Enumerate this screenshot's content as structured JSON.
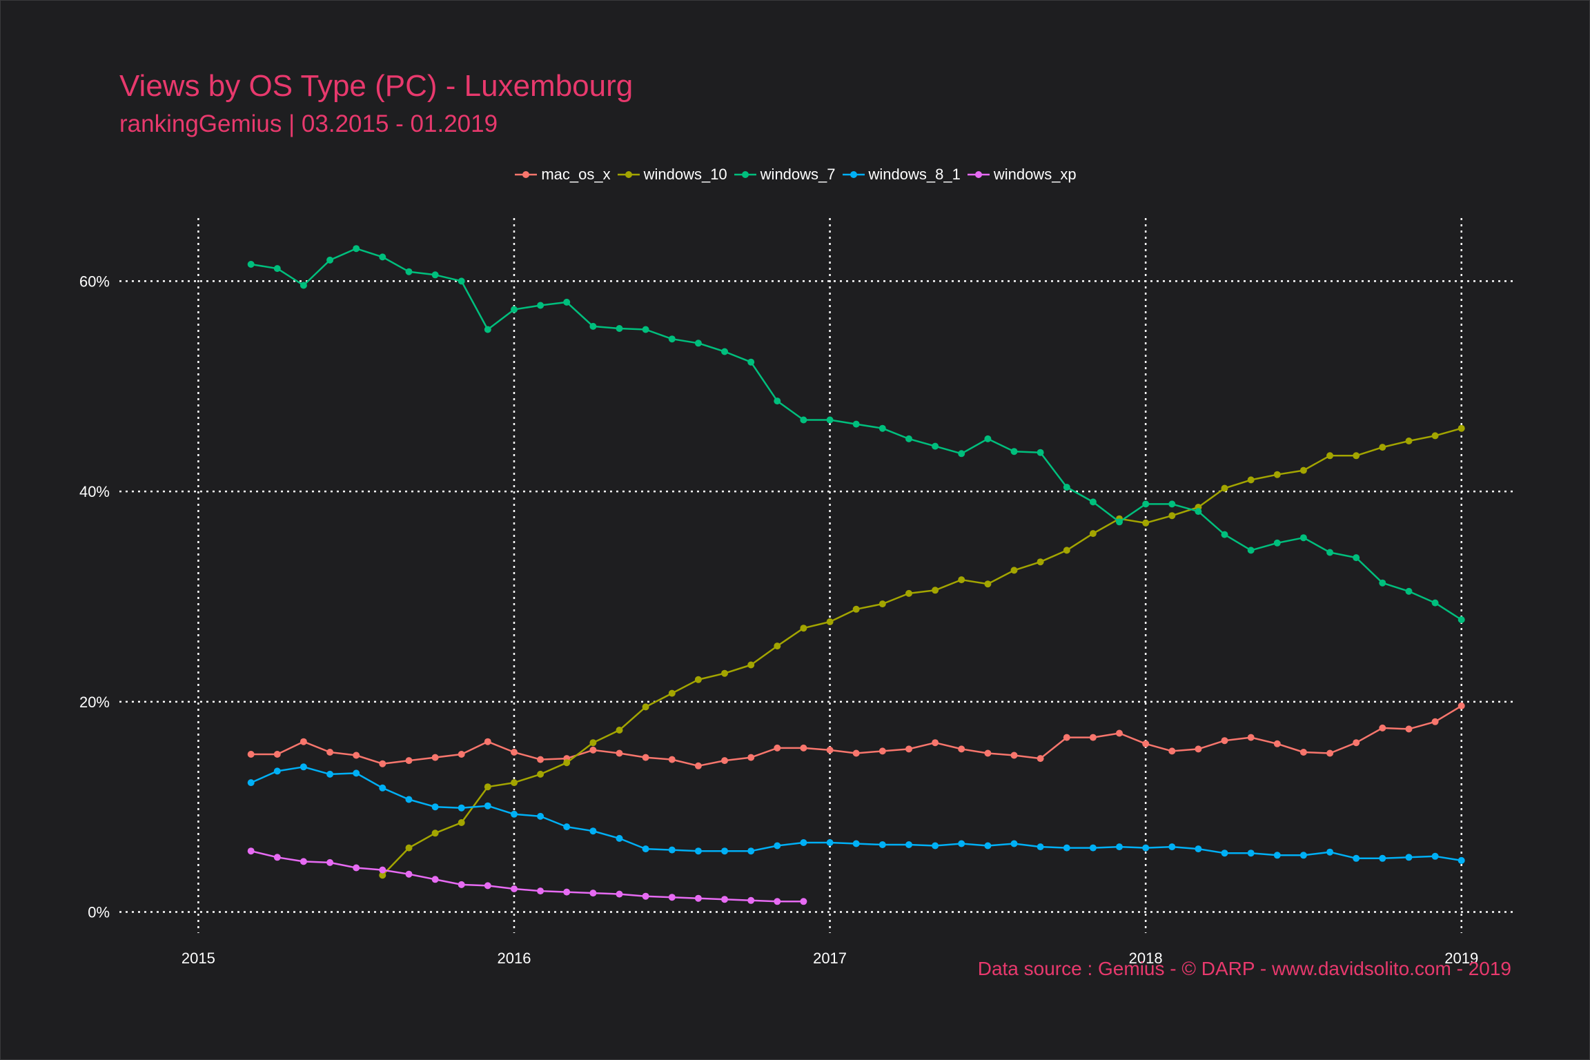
{
  "title": "Views by OS Type (PC) - Luxembourg",
  "subtitle": "rankingGemius | 03.2015 - 01.2019",
  "caption": "Data source : Gemius - © DARP - www.davidsolito.com - 2019",
  "colors": {
    "background": "#1e1e20",
    "accent": "#e8396d",
    "grid": "#ffffff",
    "text": "#ffffff"
  },
  "chart_data": {
    "type": "line",
    "title": "Views by OS Type (PC) - Luxembourg",
    "subtitle": "rankingGemius | 03.2015 - 01.2019",
    "xlabel": "",
    "ylabel": "",
    "x_tick_labels": [
      "2015",
      "2016",
      "2017",
      "2018",
      "2019"
    ],
    "y_ticks": [
      0,
      20,
      40,
      60
    ],
    "y_tick_labels": [
      "0%",
      "20%",
      "40%",
      "60%"
    ],
    "xlim": [
      "2014-10",
      "2019-03"
    ],
    "ylim": [
      -2,
      66
    ],
    "grid": true,
    "legend_position": "top",
    "series": [
      {
        "name": "mac_os_x",
        "color": "#f8766d",
        "x": [
          "2015-03",
          "2015-04",
          "2015-05",
          "2015-06",
          "2015-07",
          "2015-08",
          "2015-09",
          "2015-10",
          "2015-11",
          "2015-12",
          "2016-01",
          "2016-02",
          "2016-03",
          "2016-04",
          "2016-05",
          "2016-06",
          "2016-07",
          "2016-08",
          "2016-09",
          "2016-10",
          "2016-11",
          "2016-12",
          "2017-01",
          "2017-02",
          "2017-03",
          "2017-04",
          "2017-05",
          "2017-06",
          "2017-07",
          "2017-08",
          "2017-09",
          "2017-10",
          "2017-11",
          "2017-12",
          "2018-01",
          "2018-02",
          "2018-03",
          "2018-04",
          "2018-05",
          "2018-06",
          "2018-07",
          "2018-08",
          "2018-09",
          "2018-10",
          "2018-11",
          "2018-12",
          "2019-01"
        ],
        "values": [
          15.0,
          15.0,
          16.2,
          15.2,
          14.9,
          14.1,
          14.4,
          14.7,
          15.0,
          16.2,
          15.2,
          14.5,
          14.6,
          15.4,
          15.1,
          14.7,
          14.5,
          13.9,
          14.4,
          14.7,
          15.6,
          15.6,
          15.4,
          15.1,
          15.3,
          15.5,
          16.1,
          15.5,
          15.1,
          14.9,
          14.6,
          16.6,
          16.6,
          17.0,
          16.0,
          15.3,
          15.5,
          16.3,
          16.6,
          16.0,
          15.2,
          15.1,
          16.1,
          17.5,
          17.4,
          18.1,
          19.6
        ]
      },
      {
        "name": "windows_10",
        "color": "#a3a500",
        "x": [
          "2015-08",
          "2015-09",
          "2015-10",
          "2015-11",
          "2015-12",
          "2016-01",
          "2016-02",
          "2016-03",
          "2016-04",
          "2016-05",
          "2016-06",
          "2016-07",
          "2016-08",
          "2016-09",
          "2016-10",
          "2016-11",
          "2016-12",
          "2017-01",
          "2017-02",
          "2017-03",
          "2017-04",
          "2017-05",
          "2017-06",
          "2017-07",
          "2017-08",
          "2017-09",
          "2017-10",
          "2017-11",
          "2017-12",
          "2018-01",
          "2018-02",
          "2018-03",
          "2018-04",
          "2018-05",
          "2018-06",
          "2018-07",
          "2018-08",
          "2018-09",
          "2018-10",
          "2018-11",
          "2018-12",
          "2019-01"
        ],
        "values": [
          3.5,
          6.1,
          7.5,
          8.5,
          11.9,
          12.3,
          13.1,
          14.2,
          16.1,
          17.3,
          19.5,
          20.8,
          22.1,
          22.7,
          23.5,
          25.3,
          27.0,
          27.6,
          28.8,
          29.3,
          30.3,
          30.6,
          31.6,
          31.2,
          32.5,
          33.3,
          34.4,
          36.0,
          37.4,
          37.0,
          37.7,
          38.5,
          40.3,
          41.1,
          41.6,
          42.0,
          43.4,
          43.4,
          44.2,
          44.8,
          45.3,
          46.0
        ]
      },
      {
        "name": "windows_7",
        "color": "#00bf7d",
        "x": [
          "2015-03",
          "2015-04",
          "2015-05",
          "2015-06",
          "2015-07",
          "2015-08",
          "2015-09",
          "2015-10",
          "2015-11",
          "2015-12",
          "2016-01",
          "2016-02",
          "2016-03",
          "2016-04",
          "2016-05",
          "2016-06",
          "2016-07",
          "2016-08",
          "2016-09",
          "2016-10",
          "2016-11",
          "2016-12",
          "2017-01",
          "2017-02",
          "2017-03",
          "2017-04",
          "2017-05",
          "2017-06",
          "2017-07",
          "2017-08",
          "2017-09",
          "2017-10",
          "2017-11",
          "2017-12",
          "2018-01",
          "2018-02",
          "2018-03",
          "2018-04",
          "2018-05",
          "2018-06",
          "2018-07",
          "2018-08",
          "2018-09",
          "2018-10",
          "2018-11",
          "2018-12",
          "2019-01"
        ],
        "values": [
          61.6,
          61.2,
          59.6,
          62.0,
          63.1,
          62.3,
          60.9,
          60.6,
          60.0,
          55.4,
          57.3,
          57.7,
          58.0,
          55.7,
          55.5,
          55.4,
          54.5,
          54.1,
          53.3,
          52.3,
          48.6,
          46.8,
          46.8,
          46.4,
          46.0,
          45.0,
          44.3,
          43.6,
          45.0,
          43.8,
          43.7,
          40.4,
          39.0,
          37.1,
          38.8,
          38.8,
          38.1,
          35.9,
          34.4,
          35.1,
          35.6,
          34.2,
          33.7,
          31.3,
          30.5,
          29.4,
          27.8
        ]
      },
      {
        "name": "windows_8_1",
        "color": "#00b0f6",
        "x": [
          "2015-03",
          "2015-04",
          "2015-05",
          "2015-06",
          "2015-07",
          "2015-08",
          "2015-09",
          "2015-10",
          "2015-11",
          "2015-12",
          "2016-01",
          "2016-02",
          "2016-03",
          "2016-04",
          "2016-05",
          "2016-06",
          "2016-07",
          "2016-08",
          "2016-09",
          "2016-10",
          "2016-11",
          "2016-12",
          "2017-01",
          "2017-02",
          "2017-03",
          "2017-04",
          "2017-05",
          "2017-06",
          "2017-07",
          "2017-08",
          "2017-09",
          "2017-10",
          "2017-11",
          "2017-12",
          "2018-01",
          "2018-02",
          "2018-03",
          "2018-04",
          "2018-05",
          "2018-06",
          "2018-07",
          "2018-08",
          "2018-09",
          "2018-10",
          "2018-11",
          "2018-12",
          "2019-01"
        ],
        "values": [
          12.3,
          13.4,
          13.8,
          13.1,
          13.2,
          11.8,
          10.7,
          10.0,
          9.9,
          10.1,
          9.3,
          9.1,
          8.1,
          7.7,
          7.0,
          6.0,
          5.9,
          5.8,
          5.8,
          5.8,
          6.3,
          6.6,
          6.6,
          6.5,
          6.4,
          6.4,
          6.3,
          6.5,
          6.3,
          6.5,
          6.2,
          6.1,
          6.1,
          6.2,
          6.1,
          6.2,
          6.0,
          5.6,
          5.6,
          5.4,
          5.4,
          5.7,
          5.1,
          5.1,
          5.2,
          5.3,
          4.9
        ]
      },
      {
        "name": "windows_xp",
        "color": "#e76bf3",
        "x": [
          "2015-03",
          "2015-04",
          "2015-05",
          "2015-06",
          "2015-07",
          "2015-08",
          "2015-09",
          "2015-10",
          "2015-11",
          "2015-12",
          "2016-01",
          "2016-02",
          "2016-03",
          "2016-04",
          "2016-05",
          "2016-06",
          "2016-07",
          "2016-08",
          "2016-09",
          "2016-10",
          "2016-11",
          "2016-12"
        ],
        "values": [
          5.8,
          5.2,
          4.8,
          4.7,
          4.2,
          4.0,
          3.6,
          3.1,
          2.6,
          2.5,
          2.2,
          2.0,
          1.9,
          1.8,
          1.7,
          1.5,
          1.4,
          1.3,
          1.2,
          1.1,
          1.0,
          1.0
        ]
      }
    ]
  }
}
